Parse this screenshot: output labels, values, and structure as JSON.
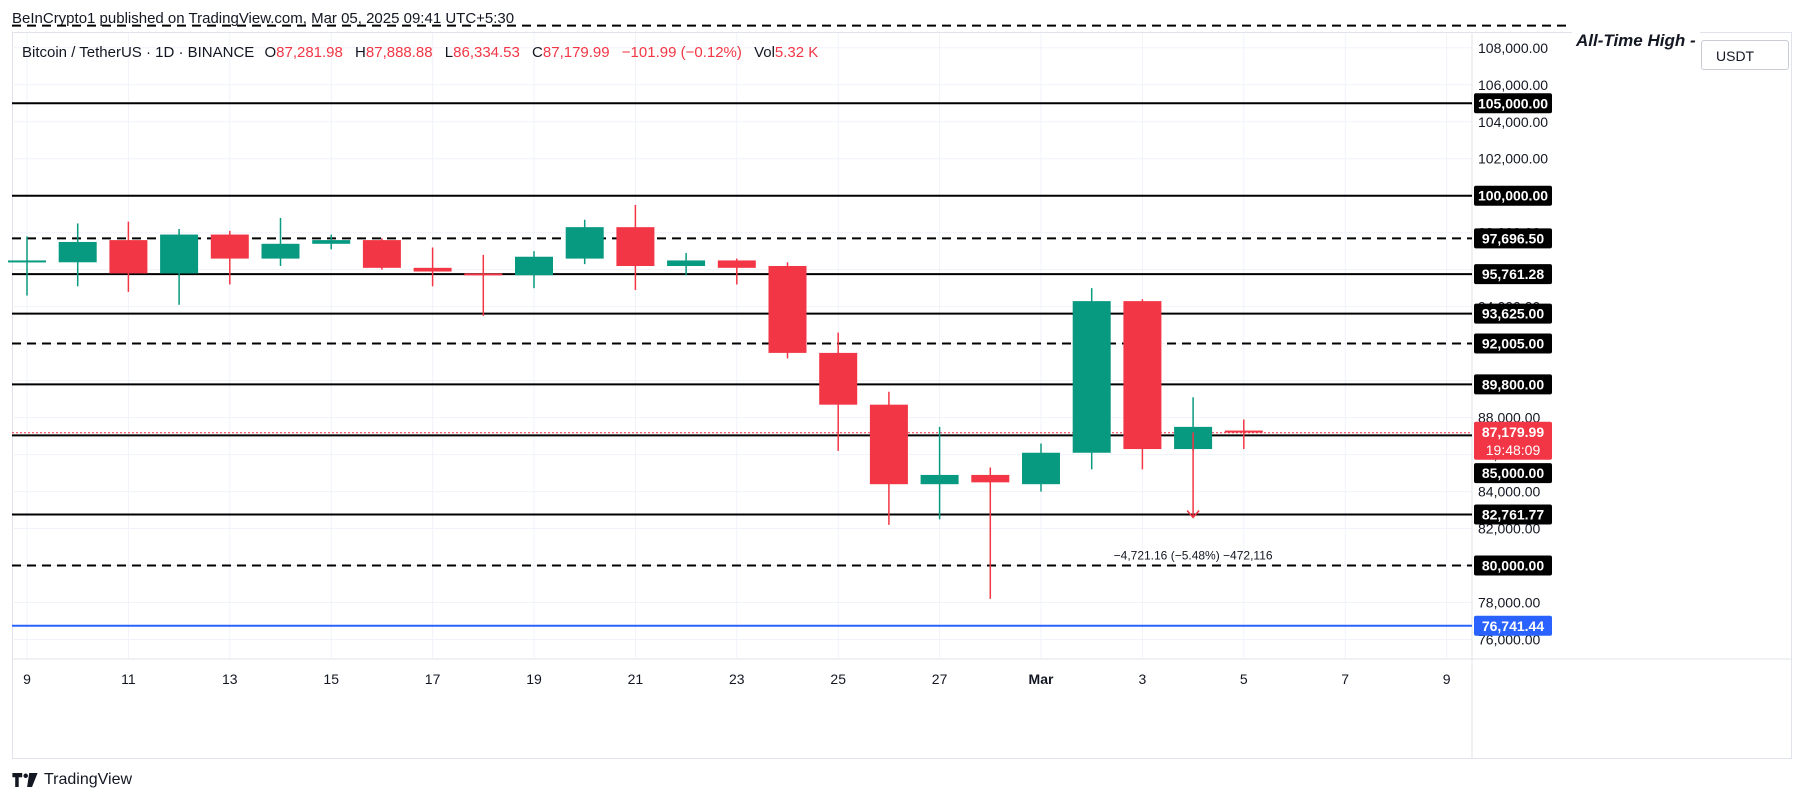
{
  "header": {
    "publish_text": "BeInCrypto1 published on TradingView.com, Mar 05, 2025 09:41 UTC+5:30"
  },
  "symbol": {
    "name": "Bitcoin / TetherUS · 1D · BINANCE",
    "o_label": "O",
    "o_value": "87,281.98",
    "h_label": "H",
    "h_value": "87,888.88",
    "l_label": "L",
    "l_value": "86,334.53",
    "c_label": "C",
    "c_value": "87,179.99",
    "change": "−101.99 (−0.12%)",
    "vol_label": "Vol",
    "vol_value": "5.32 K"
  },
  "currency": "USDT",
  "brand": "TradingView",
  "colors": {
    "up": "#089981",
    "down": "#f23645",
    "level": "#000000",
    "support_blue": "#2962ff",
    "grid": "#f0f3fa",
    "axis_text": "#131722"
  },
  "chart_data": {
    "type": "candlestick",
    "title": "",
    "ylim": [
      75000,
      109800
    ],
    "y_ticks": [
      76000,
      78000,
      80000,
      82000,
      84000,
      86000,
      88000,
      90000,
      92000,
      94000,
      96000,
      98000,
      100000,
      102000,
      104000,
      106000,
      108000
    ],
    "x_ticks": [
      "9",
      "11",
      "13",
      "15",
      "17",
      "19",
      "21",
      "23",
      "25",
      "27",
      "Mar",
      "3",
      "5",
      "7",
      "9"
    ],
    "x_tick_days": [
      0,
      2,
      4,
      6,
      8,
      10,
      12,
      14,
      16,
      18,
      20,
      22,
      24,
      26,
      28
    ],
    "candles": [
      {
        "d": 0,
        "o": 96500,
        "h": 97800,
        "l": 94600,
        "c": 96500
      },
      {
        "d": 1,
        "o": 96400,
        "h": 98500,
        "l": 95100,
        "c": 97500
      },
      {
        "d": 2,
        "o": 97600,
        "h": 98600,
        "l": 94800,
        "c": 95800
      },
      {
        "d": 3,
        "o": 95800,
        "h": 98200,
        "l": 94100,
        "c": 97900
      },
      {
        "d": 4,
        "o": 97900,
        "h": 98100,
        "l": 95200,
        "c": 96600
      },
      {
        "d": 5,
        "o": 96600,
        "h": 98800,
        "l": 96200,
        "c": 97400
      },
      {
        "d": 6,
        "o": 97400,
        "h": 97900,
        "l": 97100,
        "c": 97600
      },
      {
        "d": 7,
        "o": 97600,
        "h": 97700,
        "l": 96000,
        "c": 96100
      },
      {
        "d": 8,
        "o": 96100,
        "h": 97200,
        "l": 95100,
        "c": 95900
      },
      {
        "d": 9,
        "o": 95800,
        "h": 96800,
        "l": 93500,
        "c": 95700
      },
      {
        "d": 10,
        "o": 95700,
        "h": 97000,
        "l": 95000,
        "c": 96700
      },
      {
        "d": 11,
        "o": 96600,
        "h": 98700,
        "l": 96300,
        "c": 98300
      },
      {
        "d": 12,
        "o": 98300,
        "h": 99500,
        "l": 94900,
        "c": 96200
      },
      {
        "d": 13,
        "o": 96200,
        "h": 96900,
        "l": 95700,
        "c": 96500
      },
      {
        "d": 14,
        "o": 96500,
        "h": 96600,
        "l": 95200,
        "c": 96100
      },
      {
        "d": 15,
        "o": 96200,
        "h": 96400,
        "l": 91200,
        "c": 91500
      },
      {
        "d": 16,
        "o": 91500,
        "h": 92600,
        "l": 86200,
        "c": 88700
      },
      {
        "d": 17,
        "o": 88700,
        "h": 89400,
        "l": 82200,
        "c": 84400
      },
      {
        "d": 18,
        "o": 84400,
        "h": 87500,
        "l": 82500,
        "c": 84900
      },
      {
        "d": 19,
        "o": 84900,
        "h": 85300,
        "l": 78200,
        "c": 84500
      },
      {
        "d": 20,
        "o": 84400,
        "h": 86600,
        "l": 84000,
        "c": 86100
      },
      {
        "d": 21,
        "o": 86100,
        "h": 95000,
        "l": 85200,
        "c": 94300
      },
      {
        "d": 22,
        "o": 94300,
        "h": 94400,
        "l": 85200,
        "c": 86300
      },
      {
        "d": 23,
        "o": 86300,
        "h": 89100,
        "l": 86200,
        "c": 87500
      },
      {
        "d": 24,
        "o": 87300,
        "h": 87900,
        "l": 86300,
        "c": 87200
      }
    ],
    "levels": [
      {
        "price": 105000,
        "label": "105,000.00",
        "style": "solid",
        "color": "#000000"
      },
      {
        "price": 100000,
        "label": "100,000.00",
        "style": "solid",
        "color": "#000000"
      },
      {
        "price": 97696.5,
        "label": "97,696.50",
        "style": "dashed",
        "color": "#000000"
      },
      {
        "price": 95761.28,
        "label": "95,761.28",
        "style": "solid",
        "color": "#000000"
      },
      {
        "price": 93625,
        "label": "93,625.00",
        "style": "solid",
        "color": "#000000"
      },
      {
        "price": 92005,
        "label": "92,005.00",
        "style": "dashed",
        "color": "#000000"
      },
      {
        "price": 89800,
        "label": "89,800.00",
        "style": "solid",
        "color": "#000000"
      },
      {
        "price": 87041.76,
        "label": "87,041.76",
        "style": "solid",
        "color": "#000000"
      },
      {
        "price": 85000,
        "label": "85,000.00",
        "style": "none",
        "color": "#000000"
      },
      {
        "price": 82761.77,
        "label": "82,761.77",
        "style": "solid",
        "color": "#000000"
      },
      {
        "price": 80000,
        "label": "80,000.00",
        "style": "dashed",
        "color": "#000000"
      },
      {
        "price": 76741.44,
        "label": "76,741.44",
        "style": "solid",
        "color": "#2962ff"
      }
    ],
    "ath_level": {
      "price": 109200,
      "label": "All-Time High -"
    },
    "current_price": {
      "price": 87179.99,
      "label": "87,179.99",
      "countdown": "19:48:09"
    },
    "projection": {
      "day": 23,
      "from": 87200,
      "to": 82600,
      "label": "−4,721.16 (−5.48%) −472,116"
    }
  }
}
